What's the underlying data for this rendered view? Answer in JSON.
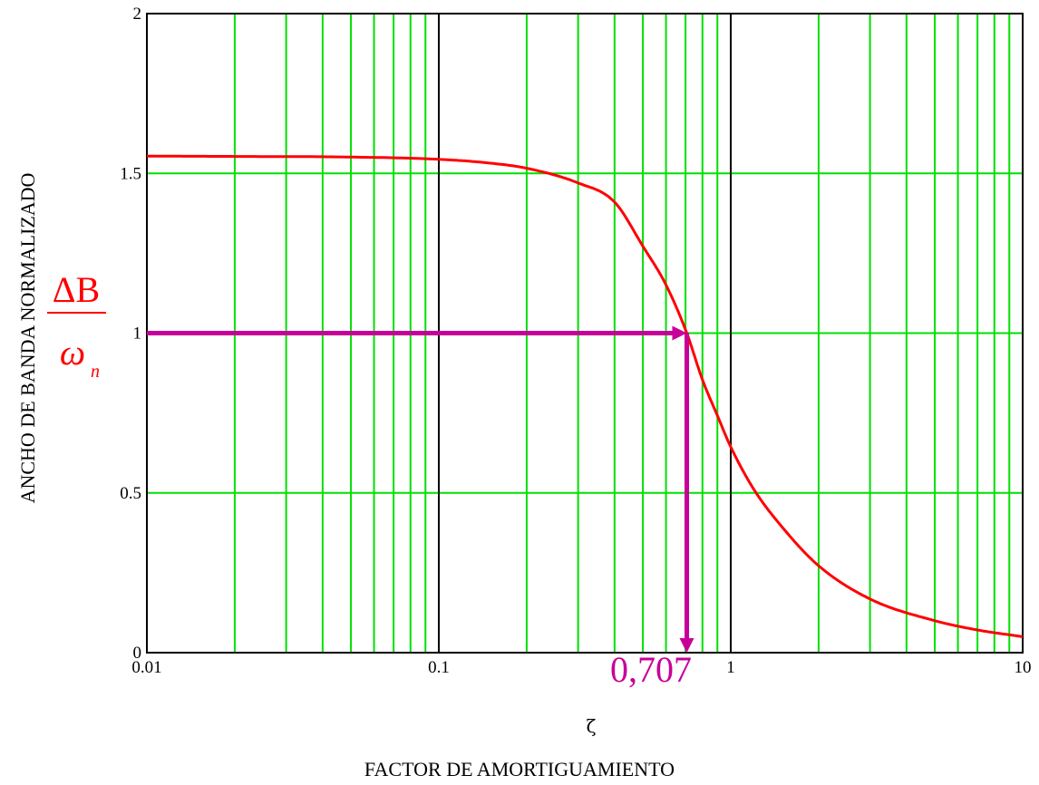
{
  "chart_data": {
    "type": "line",
    "xlabel_symbol": "ζ",
    "xlabel": "FACTOR DE AMORTIGUAMIENTO",
    "ylabel": "ANCHO DE BANDA NORMALIZADO",
    "x_scale": "log",
    "xlim": [
      0.01,
      10
    ],
    "ylim": [
      0,
      2
    ],
    "x_ticks": [
      "0.01",
      "0.1",
      "1",
      "10"
    ],
    "y_ticks": [
      "0",
      "0.5",
      "1",
      "1.5",
      "2"
    ],
    "grid": true,
    "series": [
      {
        "color": "#ff0000",
        "x": [
          0.01,
          0.02,
          0.05,
          0.1,
          0.15,
          0.2,
          0.3,
          0.4,
          0.5,
          0.6,
          0.707,
          0.8,
          0.9,
          1.0,
          1.2,
          1.5,
          2.0,
          3.0,
          5.0,
          7.0,
          10.0
        ],
        "y": [
          1.554,
          1.553,
          1.551,
          1.544,
          1.532,
          1.516,
          1.47,
          1.41,
          1.272,
          1.151,
          1.0,
          0.854,
          0.742,
          0.644,
          0.511,
          0.393,
          0.272,
          0.168,
          0.1,
          0.071,
          0.05
        ]
      }
    ],
    "annotation": {
      "color": "#c8009a",
      "point_x": 0.707,
      "point_y": 1.0,
      "x_value_label": "0,707",
      "ratio_numerator": "ΔB",
      "ratio_denominator": "ω",
      "ratio_subscript": "n",
      "ratio_color": "#ff0000"
    },
    "colors": {
      "minor_grid": "#00e000",
      "major_grid": "#000000",
      "curve": "#ff0000"
    }
  }
}
